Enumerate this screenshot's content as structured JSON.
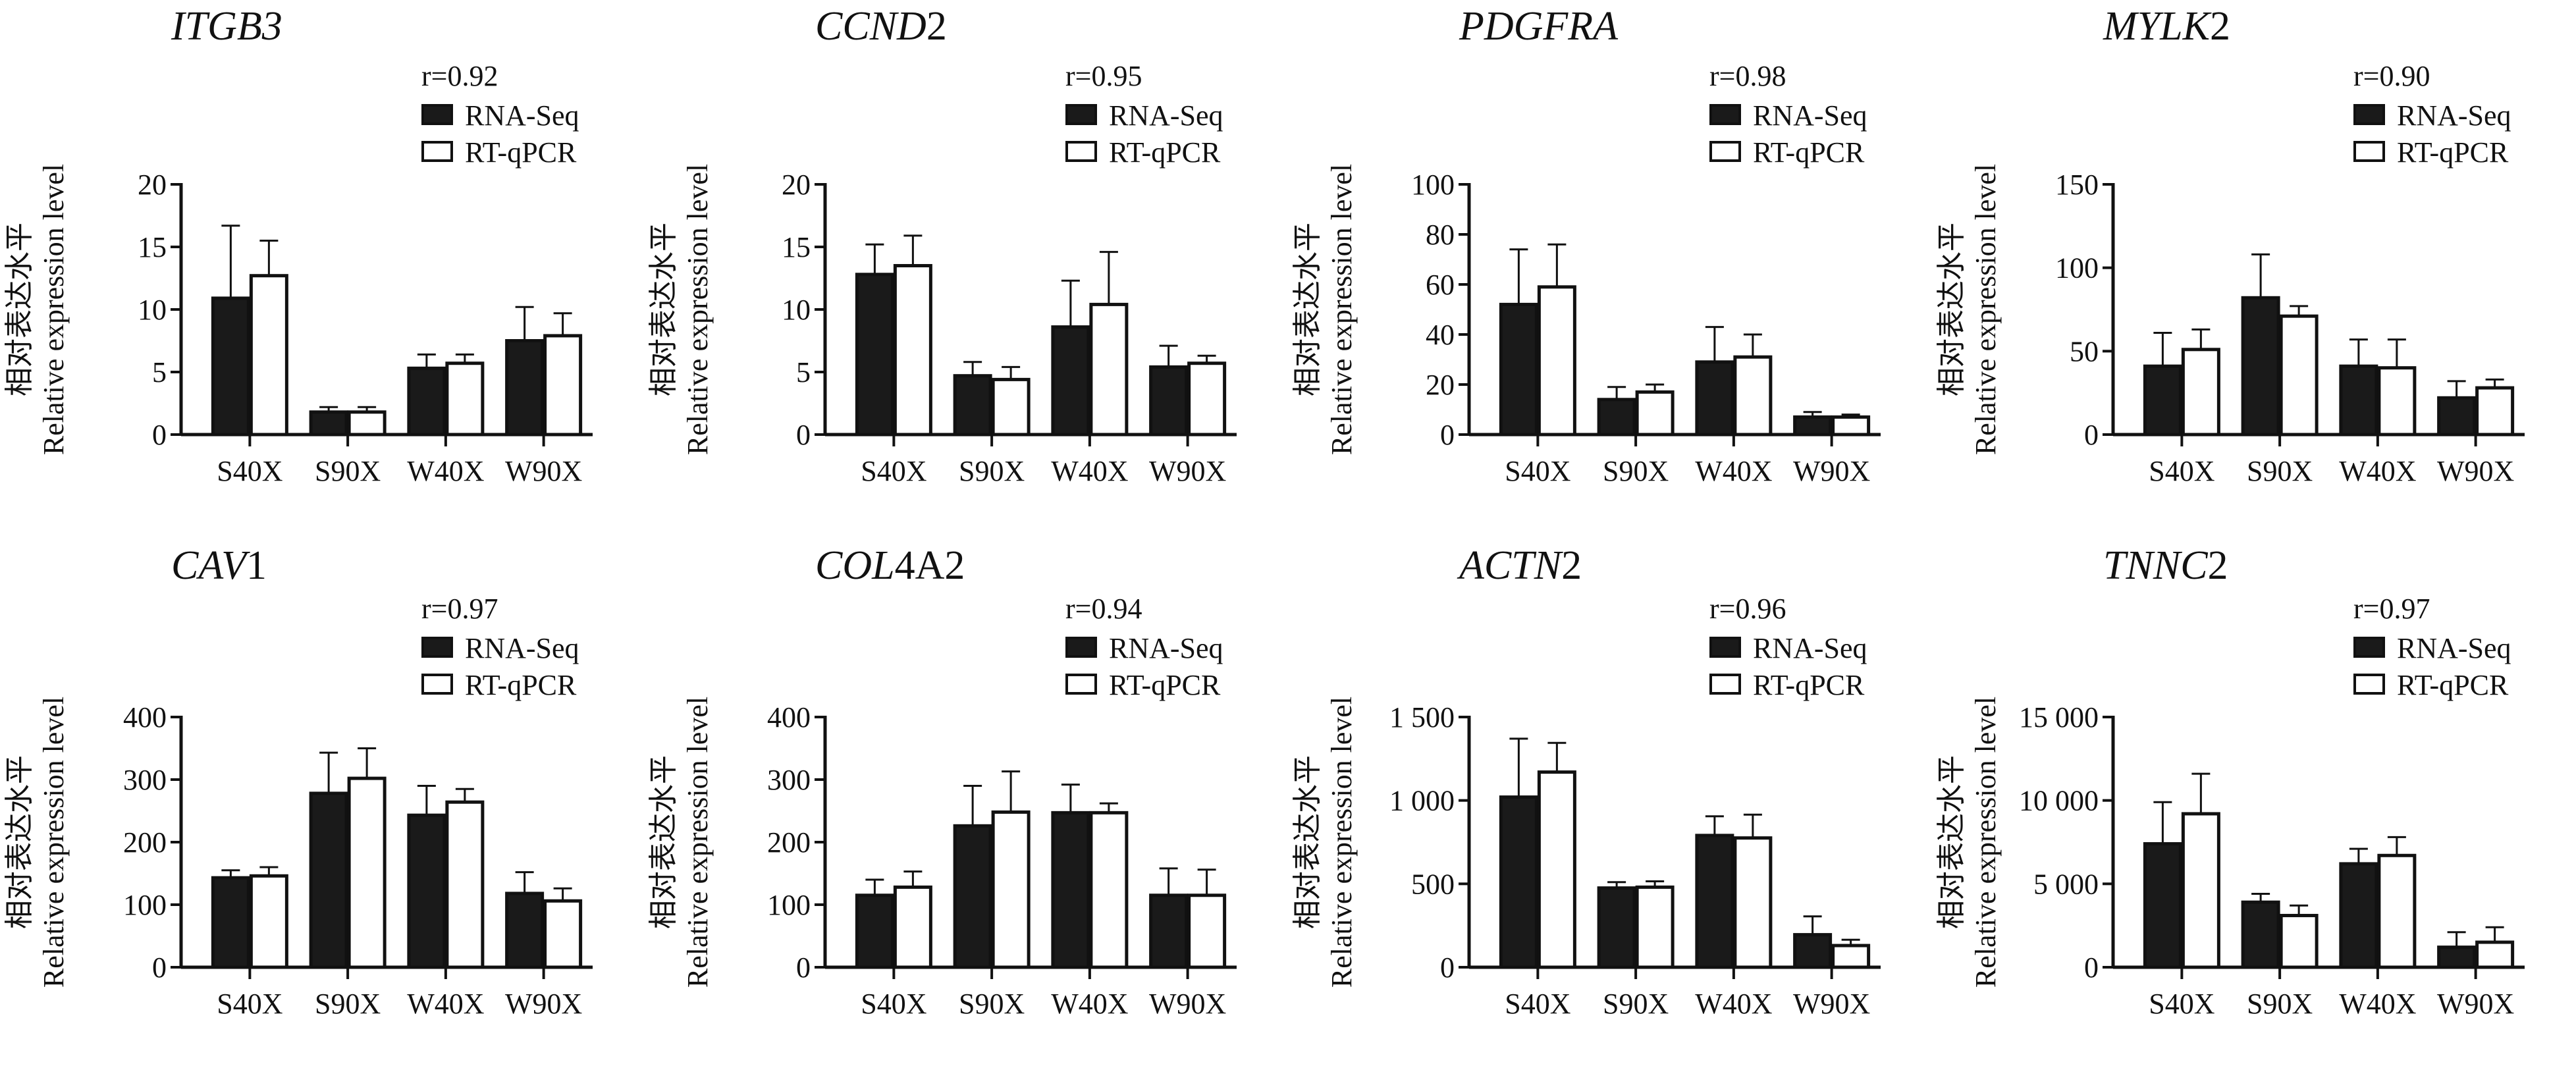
{
  "legend": {
    "series_a": "RNA-Seq",
    "series_b": "RT-qPCR",
    "color_a": "#1a1a1a",
    "color_b": "#ffffff"
  },
  "ylabel_cn": "相对表达水平",
  "ylabel_en": "Relative expression level",
  "chart_data": [
    {
      "type": "bar",
      "title_italic": "ITGB3",
      "title_plain": "",
      "r": "r=0.92",
      "categories": [
        "S40X",
        "S90X",
        "W40X",
        "W90X"
      ],
      "ylim": [
        0,
        20
      ],
      "yticks": [
        "0",
        "5",
        "10",
        "15",
        "20"
      ],
      "ytick_values": [
        0,
        5,
        10,
        15,
        20
      ],
      "series": [
        {
          "name": "RNA-Seq",
          "values": [
            10.9,
            1.8,
            5.3,
            7.5
          ],
          "error_upper": [
            16.7,
            2.2,
            6.4,
            10.2
          ]
        },
        {
          "name": "RT-qPCR",
          "values": [
            12.7,
            1.8,
            5.7,
            7.9
          ],
          "error_upper": [
            15.5,
            2.2,
            6.4,
            9.7
          ]
        }
      ]
    },
    {
      "type": "bar",
      "title_italic": "CCND",
      "title_plain": "2",
      "r": "r=0.95",
      "categories": [
        "S40X",
        "S90X",
        "W40X",
        "W90X"
      ],
      "ylim": [
        0,
        20
      ],
      "yticks": [
        "0",
        "5",
        "10",
        "15",
        "20"
      ],
      "ytick_values": [
        0,
        5,
        10,
        15,
        20
      ],
      "series": [
        {
          "name": "RNA-Seq",
          "values": [
            12.8,
            4.7,
            8.6,
            5.4
          ],
          "error_upper": [
            15.2,
            5.8,
            12.3,
            7.1
          ]
        },
        {
          "name": "RT-qPCR",
          "values": [
            13.5,
            4.4,
            10.4,
            5.7
          ],
          "error_upper": [
            15.9,
            5.4,
            14.6,
            6.3
          ]
        }
      ]
    },
    {
      "type": "bar",
      "title_italic": "PDGFRA",
      "title_plain": "",
      "r": "r=0.98",
      "categories": [
        "S40X",
        "S90X",
        "W40X",
        "W90X"
      ],
      "ylim": [
        0,
        100
      ],
      "yticks": [
        "0",
        "20",
        "40",
        "60",
        "80",
        "100"
      ],
      "ytick_values": [
        0,
        20,
        40,
        60,
        80,
        100
      ],
      "series": [
        {
          "name": "RNA-Seq",
          "values": [
            52,
            14,
            29,
            7
          ],
          "error_upper": [
            74,
            19,
            43,
            9
          ]
        },
        {
          "name": "RT-qPCR",
          "values": [
            59,
            17,
            31,
            7
          ],
          "error_upper": [
            76,
            20,
            40,
            8
          ]
        }
      ]
    },
    {
      "type": "bar",
      "title_italic": "MYLK",
      "title_plain": "2",
      "r": "r=0.90",
      "categories": [
        "S40X",
        "S90X",
        "W40X",
        "W90X"
      ],
      "ylim": [
        0,
        150
      ],
      "yticks": [
        "0",
        "50",
        "100",
        "150"
      ],
      "ytick_values": [
        0,
        50,
        100,
        150
      ],
      "series": [
        {
          "name": "RNA-Seq",
          "values": [
            41,
            82,
            41,
            22
          ],
          "error_upper": [
            61,
            108,
            57,
            32
          ]
        },
        {
          "name": "RT-qPCR",
          "values": [
            51,
            71,
            40,
            28
          ],
          "error_upper": [
            63,
            77,
            57,
            33
          ]
        }
      ]
    },
    {
      "type": "bar",
      "title_italic": "CAV",
      "title_plain": "1",
      "r": "r=0.97",
      "categories": [
        "S40X",
        "S90X",
        "W40X",
        "W90X"
      ],
      "ylim": [
        0,
        400
      ],
      "yticks": [
        "0",
        "100",
        "200",
        "300",
        "400"
      ],
      "ytick_values": [
        0,
        100,
        200,
        300,
        400
      ],
      "series": [
        {
          "name": "RNA-Seq",
          "values": [
            143,
            278,
            243,
            118
          ],
          "error_upper": [
            155,
            343,
            290,
            152
          ]
        },
        {
          "name": "RT-qPCR",
          "values": [
            146,
            302,
            264,
            106
          ],
          "error_upper": [
            160,
            350,
            285,
            126
          ]
        }
      ]
    },
    {
      "type": "bar",
      "title_italic": "COL",
      "title_plain": "4A2",
      "r": "r=0.94",
      "categories": [
        "S40X",
        "S90X",
        "W40X",
        "W90X"
      ],
      "ylim": [
        0,
        400
      ],
      "yticks": [
        "0",
        "100",
        "200",
        "300",
        "400"
      ],
      "ytick_values": [
        0,
        100,
        200,
        300,
        400
      ],
      "series": [
        {
          "name": "RNA-Seq",
          "values": [
            115,
            226,
            247,
            115
          ],
          "error_upper": [
            140,
            290,
            292,
            158
          ]
        },
        {
          "name": "RT-qPCR",
          "values": [
            128,
            248,
            247,
            115
          ],
          "error_upper": [
            153,
            313,
            262,
            156
          ]
        }
      ]
    },
    {
      "type": "bar",
      "title_italic": "ACTN",
      "title_plain": "2",
      "r": "r=0.96",
      "categories": [
        "S40X",
        "S90X",
        "W40X",
        "W90X"
      ],
      "ylim": [
        0,
        1500
      ],
      "yticks": [
        "0",
        "500",
        "1 000",
        "1 500"
      ],
      "ytick_values": [
        0,
        500,
        1000,
        1500
      ],
      "series": [
        {
          "name": "RNA-Seq",
          "values": [
            1020,
            475,
            790,
            195
          ],
          "error_upper": [
            1370,
            510,
            905,
            305
          ]
        },
        {
          "name": "RT-qPCR",
          "values": [
            1170,
            480,
            775,
            130
          ],
          "error_upper": [
            1345,
            515,
            915,
            165
          ]
        }
      ]
    },
    {
      "type": "bar",
      "title_italic": "TNNC",
      "title_plain": "2",
      "r": "r=0.97",
      "categories": [
        "S40X",
        "S90X",
        "W40X",
        "W90X"
      ],
      "ylim": [
        0,
        15000
      ],
      "yticks": [
        "0",
        "5 000",
        "10 000",
        "15 000"
      ],
      "ytick_values": [
        0,
        5000,
        10000,
        15000
      ],
      "series": [
        {
          "name": "RNA-Seq",
          "values": [
            7400,
            3900,
            6200,
            1200
          ],
          "error_upper": [
            9900,
            4400,
            7100,
            2100
          ]
        },
        {
          "name": "RT-qPCR",
          "values": [
            9200,
            3100,
            6700,
            1500
          ],
          "error_upper": [
            11600,
            3700,
            7800,
            2400
          ]
        }
      ]
    }
  ]
}
